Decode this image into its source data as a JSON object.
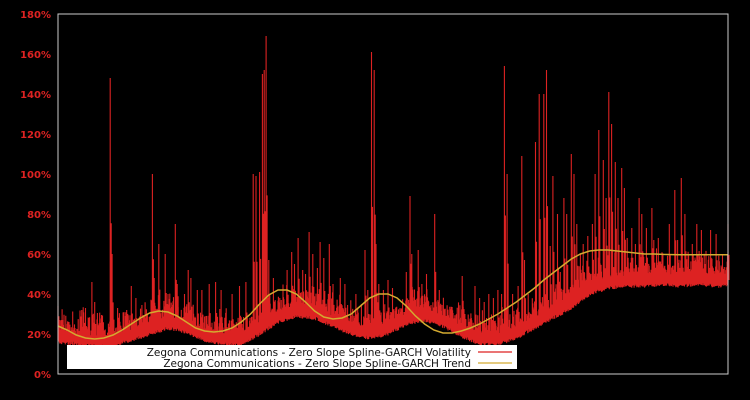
{
  "chart_data": {
    "type": "line",
    "title": "",
    "xlabel": "",
    "ylabel": "",
    "ylim": [
      0,
      180
    ],
    "y_tick_labels": [
      "0%",
      "20%",
      "40%",
      "60%",
      "80%",
      "100%",
      "120%",
      "140%",
      "160%",
      "180%"
    ],
    "y_ticks": [
      0,
      20,
      40,
      60,
      80,
      100,
      120,
      140,
      160,
      180
    ],
    "x_tick_labels": [],
    "grid": false,
    "background": "#000000",
    "axis_color": "#cccccc",
    "tick_label_color": "#dd2222",
    "legend": {
      "position": "lower-left-inside",
      "entries": [
        {
          "label": "Zegona Communications - Zero Slope Spline-GARCH Volatility",
          "color": "#dd2222"
        },
        {
          "label": "Zegona Communications - Zero Slope Spline-GARCH Trend",
          "color": "#d4aa30"
        }
      ]
    },
    "series": [
      {
        "name": "Zegona Communications - Zero Slope Spline-GARCH Volatility",
        "color": "#dd2222",
        "style": "spiky daily volatility (percent)",
        "baseline_envelope": [
          [
            0,
            18
          ],
          [
            20,
            17
          ],
          [
            40,
            16
          ],
          [
            60,
            16
          ],
          [
            80,
            19
          ],
          [
            100,
            22
          ],
          [
            120,
            25
          ],
          [
            140,
            23
          ],
          [
            160,
            19
          ],
          [
            180,
            17
          ],
          [
            200,
            17
          ],
          [
            220,
            22
          ],
          [
            240,
            28
          ],
          [
            260,
            31
          ],
          [
            280,
            30
          ],
          [
            300,
            26
          ],
          [
            320,
            22
          ],
          [
            340,
            20
          ],
          [
            360,
            22
          ],
          [
            380,
            27
          ],
          [
            400,
            29
          ],
          [
            420,
            26
          ],
          [
            440,
            21
          ],
          [
            460,
            17
          ],
          [
            480,
            17
          ],
          [
            500,
            20
          ],
          [
            520,
            25
          ],
          [
            540,
            30
          ],
          [
            560,
            35
          ],
          [
            580,
            42
          ],
          [
            600,
            45
          ],
          [
            620,
            46
          ],
          [
            640,
            46
          ],
          [
            660,
            47
          ],
          [
            680,
            46
          ],
          [
            700,
            47
          ],
          [
            720,
            46
          ],
          [
            731,
            47
          ]
        ],
        "spikes": [
          [
            0,
            34
          ],
          [
            5,
            27
          ],
          [
            12,
            26
          ],
          [
            18,
            24
          ],
          [
            26,
            32
          ],
          [
            30,
            33
          ],
          [
            37,
            46
          ],
          [
            40,
            36
          ],
          [
            57,
            148
          ],
          [
            59,
            60
          ],
          [
            65,
            33
          ],
          [
            72,
            30
          ],
          [
            80,
            44
          ],
          [
            85,
            38
          ],
          [
            95,
            30
          ],
          [
            103,
            100
          ],
          [
            105,
            48
          ],
          [
            110,
            65
          ],
          [
            117,
            60
          ],
          [
            120,
            40
          ],
          [
            128,
            75
          ],
          [
            130,
            45
          ],
          [
            138,
            40
          ],
          [
            142,
            52
          ],
          [
            145,
            48
          ],
          [
            152,
            42
          ],
          [
            157,
            42
          ],
          [
            165,
            45
          ],
          [
            172,
            46
          ],
          [
            178,
            42
          ],
          [
            190,
            40
          ],
          [
            198,
            44
          ],
          [
            205,
            46
          ],
          [
            213,
            100
          ],
          [
            216,
            99
          ],
          [
            220,
            101
          ],
          [
            223,
            150
          ],
          [
            225,
            152
          ],
          [
            227,
            169
          ],
          [
            230,
            57
          ],
          [
            235,
            48
          ],
          [
            242,
            38
          ],
          [
            250,
            52
          ],
          [
            255,
            61
          ],
          [
            258,
            55
          ],
          [
            262,
            68
          ],
          [
            267,
            52
          ],
          [
            270,
            50
          ],
          [
            274,
            71
          ],
          [
            278,
            60
          ],
          [
            283,
            53
          ],
          [
            286,
            66
          ],
          [
            290,
            58
          ],
          [
            296,
            65
          ],
          [
            300,
            45
          ],
          [
            308,
            48
          ],
          [
            313,
            45
          ],
          [
            325,
            40
          ],
          [
            335,
            62
          ],
          [
            338,
            42
          ],
          [
            342,
            161
          ],
          [
            345,
            152
          ],
          [
            347,
            65
          ],
          [
            350,
            45
          ],
          [
            355,
            42
          ],
          [
            360,
            47
          ],
          [
            365,
            43
          ],
          [
            380,
            51
          ],
          [
            384,
            89
          ],
          [
            386,
            60
          ],
          [
            393,
            62
          ],
          [
            397,
            45
          ],
          [
            402,
            50
          ],
          [
            406,
            28
          ],
          [
            411,
            80
          ],
          [
            416,
            42
          ],
          [
            420,
            29
          ],
          [
            428,
            32
          ],
          [
            437,
            34
          ],
          [
            441,
            49
          ],
          [
            444,
            30
          ],
          [
            455,
            44
          ],
          [
            460,
            38
          ],
          [
            465,
            36
          ],
          [
            470,
            40
          ],
          [
            475,
            38
          ],
          [
            480,
            42
          ],
          [
            484,
            40
          ],
          [
            487,
            154
          ],
          [
            490,
            100
          ],
          [
            496,
            40
          ],
          [
            502,
            44
          ],
          [
            506,
            109
          ],
          [
            509,
            57
          ],
          [
            513,
            40
          ],
          [
            521,
            116
          ],
          [
            525,
            140
          ],
          [
            530,
            140
          ],
          [
            533,
            152
          ],
          [
            537,
            64
          ],
          [
            540,
            99
          ],
          [
            545,
            80
          ],
          [
            548,
            51
          ],
          [
            552,
            88
          ],
          [
            555,
            80
          ],
          [
            560,
            110
          ],
          [
            563,
            100
          ],
          [
            566,
            75
          ],
          [
            570,
            60
          ],
          [
            573,
            65
          ],
          [
            578,
            69
          ],
          [
            583,
            75
          ],
          [
            586,
            100
          ],
          [
            590,
            122
          ],
          [
            595,
            107
          ],
          [
            598,
            88
          ],
          [
            601,
            141
          ],
          [
            604,
            125
          ],
          [
            608,
            106
          ],
          [
            611,
            88
          ],
          [
            615,
            103
          ],
          [
            618,
            93
          ],
          [
            621,
            68
          ],
          [
            626,
            73
          ],
          [
            630,
            65
          ],
          [
            634,
            88
          ],
          [
            637,
            80
          ],
          [
            642,
            73
          ],
          [
            648,
            83
          ],
          [
            650,
            67
          ],
          [
            655,
            68
          ],
          [
            660,
            60
          ],
          [
            667,
            75
          ],
          [
            673,
            92
          ],
          [
            676,
            67
          ],
          [
            680,
            98
          ],
          [
            684,
            80
          ],
          [
            688,
            60
          ],
          [
            692,
            65
          ],
          [
            697,
            75
          ],
          [
            702,
            72
          ],
          [
            706,
            55
          ],
          [
            712,
            72
          ],
          [
            718,
            70
          ],
          [
            725,
            60
          ],
          [
            731,
            75
          ]
        ]
      },
      {
        "name": "Zegona Communications - Zero Slope Spline-GARCH Trend",
        "color": "#d4aa30",
        "style": "smooth spline",
        "points": [
          [
            0,
            24
          ],
          [
            10,
            22
          ],
          [
            20,
            19.5
          ],
          [
            30,
            18
          ],
          [
            40,
            17.5
          ],
          [
            50,
            18
          ],
          [
            60,
            19.5
          ],
          [
            70,
            22
          ],
          [
            80,
            25
          ],
          [
            90,
            28
          ],
          [
            100,
            30.5
          ],
          [
            110,
            31.5
          ],
          [
            120,
            31
          ],
          [
            130,
            29
          ],
          [
            140,
            26
          ],
          [
            150,
            23
          ],
          [
            160,
            21.5
          ],
          [
            170,
            21
          ],
          [
            180,
            21.5
          ],
          [
            190,
            23
          ],
          [
            200,
            26
          ],
          [
            210,
            30
          ],
          [
            220,
            35
          ],
          [
            230,
            39.5
          ],
          [
            240,
            42
          ],
          [
            250,
            42
          ],
          [
            260,
            40
          ],
          [
            270,
            36
          ],
          [
            280,
            31.5
          ],
          [
            290,
            28.5
          ],
          [
            300,
            27.5
          ],
          [
            310,
            28
          ],
          [
            320,
            30
          ],
          [
            330,
            34
          ],
          [
            340,
            38
          ],
          [
            350,
            40
          ],
          [
            360,
            40
          ],
          [
            370,
            38
          ],
          [
            380,
            34
          ],
          [
            390,
            29
          ],
          [
            400,
            25
          ],
          [
            410,
            22
          ],
          [
            420,
            20.5
          ],
          [
            430,
            20.5
          ],
          [
            440,
            21.5
          ],
          [
            450,
            23
          ],
          [
            460,
            25
          ],
          [
            470,
            27.5
          ],
          [
            480,
            30
          ],
          [
            490,
            33
          ],
          [
            500,
            36
          ],
          [
            510,
            39.5
          ],
          [
            520,
            43
          ],
          [
            530,
            47
          ],
          [
            540,
            50.5
          ],
          [
            550,
            54
          ],
          [
            560,
            57.5
          ],
          [
            570,
            60
          ],
          [
            580,
            61.5
          ],
          [
            590,
            62
          ],
          [
            600,
            62
          ],
          [
            610,
            61.5
          ],
          [
            620,
            61
          ],
          [
            630,
            60.5
          ],
          [
            640,
            60
          ],
          [
            650,
            60
          ],
          [
            660,
            59.8
          ],
          [
            670,
            59.7
          ],
          [
            680,
            59.6
          ],
          [
            690,
            59.6
          ],
          [
            700,
            59.6
          ],
          [
            710,
            59.6
          ],
          [
            720,
            59.6
          ],
          [
            731,
            59.6
          ]
        ]
      }
    ]
  },
  "legend": {
    "volatility_label": "Zegona Communications - Zero Slope Spline-GARCH Volatility",
    "trend_label": "Zegona Communications - Zero Slope Spline-GARCH Trend"
  },
  "y_axis": {
    "labels": [
      "0%",
      "20%",
      "40%",
      "60%",
      "80%",
      "100%",
      "120%",
      "140%",
      "160%",
      "180%"
    ]
  }
}
